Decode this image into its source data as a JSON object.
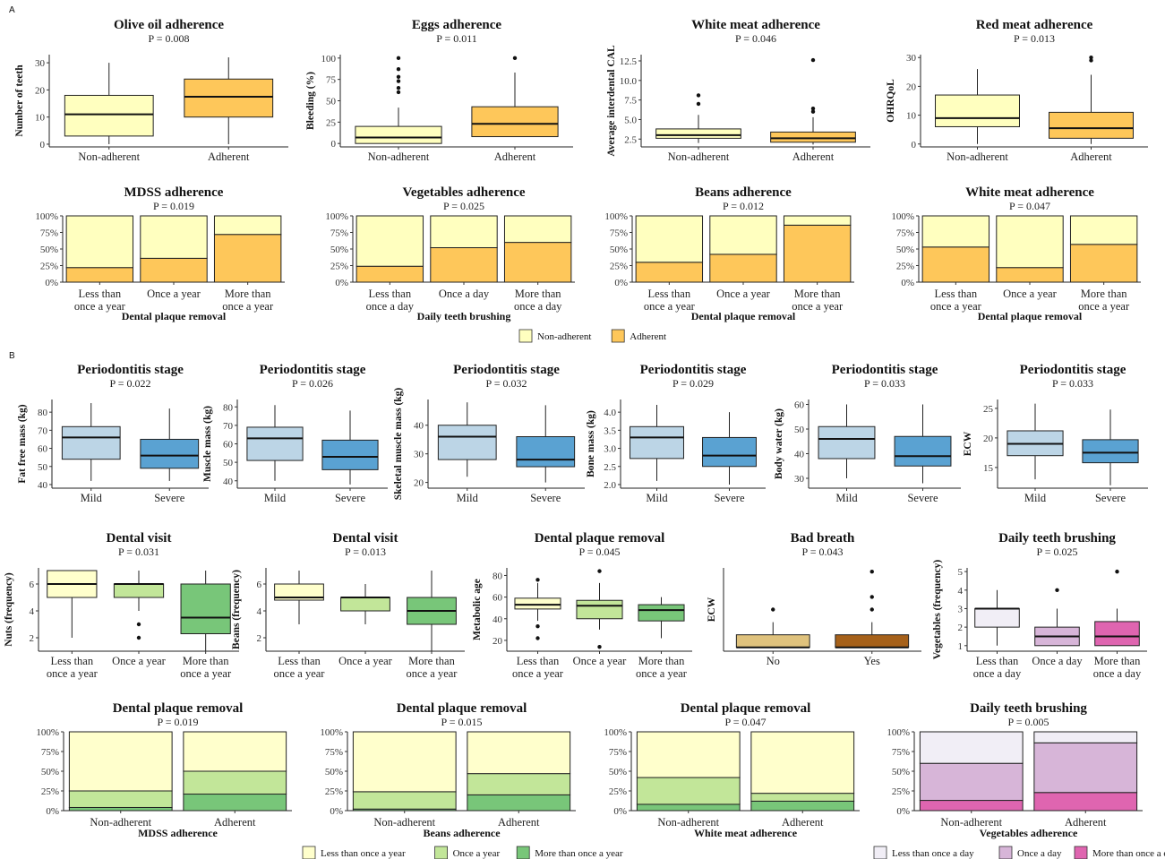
{
  "figure_labels": {
    "a": "A",
    "b": "B"
  },
  "legends": {
    "adherence": [
      "Non-adherent",
      "Adherent"
    ],
    "frequency_year": [
      "Less than once a year",
      "Once a year",
      "More than once a year"
    ],
    "frequency_day": [
      "Less than once a day",
      "Once a day",
      "More than once a day"
    ]
  },
  "colors": {
    "non_adherent": "#FFFFBF",
    "adherent": "#FEC75A",
    "mild": "#BCD5E6",
    "severe": "#5AA2D2",
    "green_1": "#FFFFCC",
    "green_2": "#C2E699",
    "green_3": "#78C679",
    "pink_1": "#F1EEF6",
    "pink_2": "#D7B5D8",
    "pink_3": "#DF65B0",
    "bad_no": "#DFC27D",
    "bad_yes": "#A6611A"
  },
  "chart_data": [
    {
      "id": "a1",
      "type": "box",
      "title": "Olive oil adherence",
      "pvalue": "P = 0.008",
      "ylabel": "Number of teeth",
      "ylim": [
        -1,
        33
      ],
      "yticks": [
        "0",
        "10",
        "20",
        "30"
      ],
      "categories": [
        "Non-adherent",
        "Adherent"
      ],
      "boxes": [
        {
          "min": 0,
          "q1": 3,
          "median": 11,
          "q3": 18,
          "max": 30,
          "outliers": []
        },
        {
          "min": 0,
          "q1": 10,
          "median": 17.5,
          "q3": 24,
          "max": 32,
          "outliers": []
        }
      ]
    },
    {
      "id": "a2",
      "type": "box",
      "title": "Eggs adherence",
      "pvalue": "P = 0.011",
      "ylabel": "Bleeding (%)",
      "ylim": [
        -4,
        104
      ],
      "yticks": [
        "0",
        "25",
        "50",
        "75",
        "100"
      ],
      "categories": [
        "Non-adherent",
        "Adherent"
      ],
      "boxes": [
        {
          "min": 0,
          "q1": 0,
          "median": 7,
          "q3": 20,
          "max": 42,
          "outliers": [
            60,
            65,
            73,
            78,
            87,
            100
          ]
        },
        {
          "min": 8,
          "q1": 8,
          "median": 23,
          "q3": 43,
          "max": 83,
          "outliers": [
            100
          ]
        }
      ]
    },
    {
      "id": "a3",
      "type": "box",
      "title": "White meat adherence",
      "pvalue": "P = 0.046",
      "ylabel": "Average interdental CAL",
      "ylim": [
        1.5,
        13.3
      ],
      "yticks": [
        "2.5",
        "5.0",
        "7.5",
        "10.0",
        "12.5"
      ],
      "categories": [
        "Non-adherent",
        "Adherent"
      ],
      "boxes": [
        {
          "min": 2.0,
          "q1": 2.6,
          "median": 3.0,
          "q3": 3.8,
          "max": 5.6,
          "outliers": [
            7.0,
            8.1
          ]
        },
        {
          "min": 1.8,
          "q1": 2.1,
          "median": 2.6,
          "q3": 3.4,
          "max": 5.3,
          "outliers": [
            6.0,
            6.4,
            12.6
          ]
        }
      ]
    },
    {
      "id": "a4",
      "type": "box",
      "title": "Red meat adherence",
      "pvalue": "P = 0.013",
      "ylabel": "OHRQoL",
      "ylim": [
        -1,
        31
      ],
      "yticks": [
        "0",
        "10",
        "20",
        "30"
      ],
      "categories": [
        "Non-adherent",
        "Adherent"
      ],
      "boxes": [
        {
          "min": 0,
          "q1": 6,
          "median": 9,
          "q3": 17,
          "max": 26,
          "outliers": []
        },
        {
          "min": 0,
          "q1": 2,
          "median": 5.5,
          "q3": 11,
          "max": 24,
          "outliers": [
            29,
            30
          ]
        }
      ]
    },
    {
      "id": "a5",
      "type": "stacked_bar",
      "title": "MDSS adherence",
      "pvalue": "P = 0.019",
      "xlabel": "Dental plaque removal",
      "categories": [
        "Less than once a year",
        "Once a year",
        "More than once a year"
      ],
      "segments": [
        [
          22,
          78
        ],
        [
          36,
          64
        ],
        [
          72,
          28
        ]
      ],
      "palette": "adherence"
    },
    {
      "id": "a6",
      "type": "stacked_bar",
      "title": "Vegetables adherence",
      "pvalue": "P = 0.025",
      "xlabel": "Daily teeth brushing",
      "categories": [
        "Less than once a day",
        "Once a day",
        "More than once a day"
      ],
      "segments": [
        [
          24,
          76
        ],
        [
          52,
          48
        ],
        [
          60,
          40
        ]
      ],
      "palette": "adherence"
    },
    {
      "id": "a7",
      "type": "stacked_bar",
      "title": "Beans adherence",
      "pvalue": "P = 0.012",
      "xlabel": "Dental plaque removal",
      "categories": [
        "Less than once a year",
        "Once a year",
        "More than once a year"
      ],
      "segments": [
        [
          30,
          70
        ],
        [
          42,
          58
        ],
        [
          86,
          14
        ]
      ],
      "palette": "adherence"
    },
    {
      "id": "a8",
      "type": "stacked_bar",
      "title": "White meat adherence",
      "pvalue": "P = 0.047",
      "xlabel": "Dental plaque removal",
      "categories": [
        "Less than once a year",
        "Once a year",
        "More than once a year"
      ],
      "segments": [
        [
          53,
          47
        ],
        [
          22,
          78
        ],
        [
          57,
          43
        ]
      ],
      "palette": "adherence"
    },
    {
      "id": "b1",
      "type": "box",
      "title": "Periodontitis stage",
      "pvalue": "P = 0.022",
      "ylabel": "Fat free mass (kg)",
      "ylim": [
        38,
        87
      ],
      "yticks": [
        "40",
        "50",
        "60",
        "70",
        "80"
      ],
      "categories": [
        "Mild",
        "Severe"
      ],
      "palette": "stage",
      "boxes": [
        {
          "min": 42,
          "q1": 54,
          "median": 66,
          "q3": 72,
          "max": 85,
          "outliers": []
        },
        {
          "min": 42,
          "q1": 49,
          "median": 56,
          "q3": 65,
          "max": 82,
          "outliers": []
        }
      ]
    },
    {
      "id": "b2",
      "type": "box",
      "title": "Periodontitis stage",
      "pvalue": "P = 0.026",
      "ylabel": "Muscle mass (kg)",
      "ylim": [
        36,
        84
      ],
      "yticks": [
        "40",
        "50",
        "60",
        "70",
        "80"
      ],
      "categories": [
        "Mild",
        "Severe"
      ],
      "palette": "stage",
      "boxes": [
        {
          "min": 40,
          "q1": 51,
          "median": 63,
          "q3": 69,
          "max": 81,
          "outliers": []
        },
        {
          "min": 38,
          "q1": 46,
          "median": 53,
          "q3": 62,
          "max": 78,
          "outliers": []
        }
      ]
    },
    {
      "id": "b3",
      "type": "box",
      "title": "Periodontitis stage",
      "pvalue": "P = 0.032",
      "ylabel": "Skeletal muscle mass (kg)",
      "ylim": [
        18,
        49
      ],
      "yticks": [
        "20",
        "30",
        "40"
      ],
      "categories": [
        "Mild",
        "Severe"
      ],
      "palette": "stage",
      "boxes": [
        {
          "min": 22,
          "q1": 28,
          "median": 36,
          "q3": 40,
          "max": 48,
          "outliers": []
        },
        {
          "min": 20,
          "q1": 25.5,
          "median": 28,
          "q3": 36,
          "max": 47,
          "outliers": []
        }
      ]
    },
    {
      "id": "b4",
      "type": "box",
      "title": "Periodontitis stage",
      "pvalue": "P = 0.029",
      "ylabel": "Bone mass (kg)",
      "ylim": [
        1.9,
        4.35
      ],
      "yticks": [
        "2.0",
        "2.5",
        "3.0",
        "3.5",
        "4.0"
      ],
      "categories": [
        "Mild",
        "Severe"
      ],
      "palette": "stage",
      "boxes": [
        {
          "min": 2.1,
          "q1": 2.72,
          "median": 3.3,
          "q3": 3.6,
          "max": 4.2,
          "outliers": []
        },
        {
          "min": 2.0,
          "q1": 2.5,
          "median": 2.8,
          "q3": 3.3,
          "max": 4.0,
          "outliers": []
        }
      ]
    },
    {
      "id": "b5",
      "type": "box",
      "title": "Periodontitis stage",
      "pvalue": "P = 0.033",
      "ylabel": "Body water (kg)",
      "ylim": [
        26,
        62
      ],
      "yticks": [
        "30",
        "40",
        "50",
        "60"
      ],
      "categories": [
        "Mild",
        "Severe"
      ],
      "palette": "stage",
      "boxes": [
        {
          "min": 30,
          "q1": 38,
          "median": 46,
          "q3": 51,
          "max": 60,
          "outliers": []
        },
        {
          "min": 28,
          "q1": 35,
          "median": 39,
          "q3": 47,
          "max": 60,
          "outliers": []
        }
      ]
    },
    {
      "id": "b6",
      "type": "box",
      "title": "Periodontitis stage",
      "pvalue": "P = 0.033",
      "ylabel": "ECW",
      "ylim": [
        11.5,
        26.5
      ],
      "yticks": [
        "15",
        "20",
        "25"
      ],
      "categories": [
        "Mild",
        "Severe"
      ],
      "palette": "stage",
      "boxes": [
        {
          "min": 13,
          "q1": 17,
          "median": 19,
          "q3": 21.2,
          "max": 25.8,
          "outliers": []
        },
        {
          "min": 12,
          "q1": 15.8,
          "median": 17.5,
          "q3": 19.7,
          "max": 24.8,
          "outliers": []
        }
      ]
    },
    {
      "id": "b7",
      "type": "box",
      "title": "Dental visit",
      "pvalue": "P = 0.031",
      "ylabel": "Nuts (frequency)",
      "ylim": [
        1,
        7.2
      ],
      "yticks": [
        "2",
        "4",
        "6"
      ],
      "categories": [
        "Less than once a year",
        "Once a year",
        "More than once a year"
      ],
      "palette": "green",
      "boxes": [
        {
          "min": 2,
          "q1": 5,
          "median": 6,
          "q3": 7,
          "max": 7,
          "outliers": []
        },
        {
          "min": 4,
          "q1": 5,
          "median": 6,
          "q3": 6,
          "max": 7,
          "outliers": [
            2,
            3
          ]
        },
        {
          "min": 1,
          "q1": 2.3,
          "median": 3.5,
          "q3": 6,
          "max": 7,
          "outliers": []
        }
      ]
    },
    {
      "id": "b8",
      "type": "box",
      "title": "Dental visit",
      "pvalue": "P = 0.013",
      "ylabel": "Beans (frequency)",
      "ylim": [
        1,
        7.2
      ],
      "yticks": [
        "2",
        "4",
        "6"
      ],
      "categories": [
        "Less than once a year",
        "Once a year",
        "More than once a year"
      ],
      "palette": "green",
      "boxes": [
        {
          "min": 3,
          "q1": 4.8,
          "median": 5,
          "q3": 6,
          "max": 7,
          "outliers": []
        },
        {
          "min": 3,
          "q1": 4,
          "median": 5,
          "q3": 5,
          "max": 6,
          "outliers": []
        },
        {
          "min": 1,
          "q1": 3,
          "median": 4,
          "q3": 5,
          "max": 7,
          "outliers": []
        }
      ]
    },
    {
      "id": "b9",
      "type": "box",
      "title": "Dental plaque removal",
      "pvalue": "P = 0.045",
      "ylabel": "Metabolic age",
      "ylim": [
        10,
        87
      ],
      "yticks": [
        "20",
        "40",
        "60",
        "80"
      ],
      "categories": [
        "Less than once a year",
        "Once a year",
        "More than once a year"
      ],
      "palette": "green",
      "boxes": [
        {
          "min": 38,
          "q1": 49,
          "median": 53,
          "q3": 59,
          "max": 73,
          "outliers": [
            22,
            33,
            76
          ]
        },
        {
          "min": 30,
          "q1": 40,
          "median": 52,
          "q3": 57,
          "max": 73,
          "outliers": [
            14,
            84
          ]
        },
        {
          "min": 22,
          "q1": 38,
          "median": 48,
          "q3": 53,
          "max": 60,
          "outliers": []
        }
      ]
    },
    {
      "id": "b10",
      "type": "box",
      "title": "Bad breath",
      "pvalue": "P = 0.043",
      "ylabel": "ECW",
      "ylim": [
        0.7,
        7.3
      ],
      "yticks": [],
      "categories": [
        "No",
        "Yes"
      ],
      "palette": "badbreath",
      "boxes": [
        {
          "min": 1,
          "q1": 1,
          "median": 1,
          "q3": 2,
          "max": 3,
          "outliers": [
            4
          ]
        },
        {
          "min": 1,
          "q1": 1,
          "median": 1,
          "q3": 2,
          "max": 3,
          "outliers": [
            4,
            5,
            7
          ]
        }
      ]
    },
    {
      "id": "b11",
      "type": "box",
      "title": "Daily teeth brushing",
      "pvalue": "P = 0.025",
      "ylabel": "Vegetables (frequency)",
      "ylim": [
        0.7,
        5.2
      ],
      "yticks": [
        "1",
        "2",
        "3",
        "4",
        "5"
      ],
      "categories": [
        "Less than once a day",
        "Once a day",
        "More than once a day"
      ],
      "palette": "pink",
      "boxes": [
        {
          "min": 1,
          "q1": 2,
          "median": 3,
          "q3": 3,
          "max": 4,
          "outliers": []
        },
        {
          "min": 1,
          "q1": 1,
          "median": 1.5,
          "q3": 2,
          "max": 3,
          "outliers": [
            4
          ]
        },
        {
          "min": 1,
          "q1": 1,
          "median": 1.5,
          "q3": 2.3,
          "max": 3,
          "outliers": [
            5
          ]
        }
      ]
    },
    {
      "id": "b12",
      "type": "stacked_bar",
      "title": "Dental plaque removal",
      "pvalue": "P = 0.019",
      "xlabel": "MDSS adherence",
      "categories": [
        "Non-adherent",
        "Adherent"
      ],
      "segments": [
        [
          4,
          21,
          75
        ],
        [
          21,
          29,
          50
        ]
      ],
      "palette": "green"
    },
    {
      "id": "b13",
      "type": "stacked_bar",
      "title": "Dental plaque removal",
      "pvalue": "P = 0.015",
      "xlabel": "Beans adherence",
      "categories": [
        "Non-adherent",
        "Adherent"
      ],
      "segments": [
        [
          2,
          22,
          76
        ],
        [
          20,
          27,
          53
        ]
      ],
      "palette": "green"
    },
    {
      "id": "b14",
      "type": "stacked_bar",
      "title": "Dental plaque removal",
      "pvalue": "P = 0.047",
      "xlabel": "White meat adherence",
      "categories": [
        "Non-adherent",
        "Adherent"
      ],
      "segments": [
        [
          8,
          34,
          58
        ],
        [
          12,
          10,
          78
        ]
      ],
      "palette": "green"
    },
    {
      "id": "b15",
      "type": "stacked_bar",
      "title": "Daily teeth brushing",
      "pvalue": "P = 0.005",
      "xlabel": "Vegetables adherence",
      "categories": [
        "Non-adherent",
        "Adherent"
      ],
      "segments": [
        [
          13,
          47,
          40
        ],
        [
          23,
          63,
          14
        ]
      ],
      "palette": "pink"
    }
  ]
}
